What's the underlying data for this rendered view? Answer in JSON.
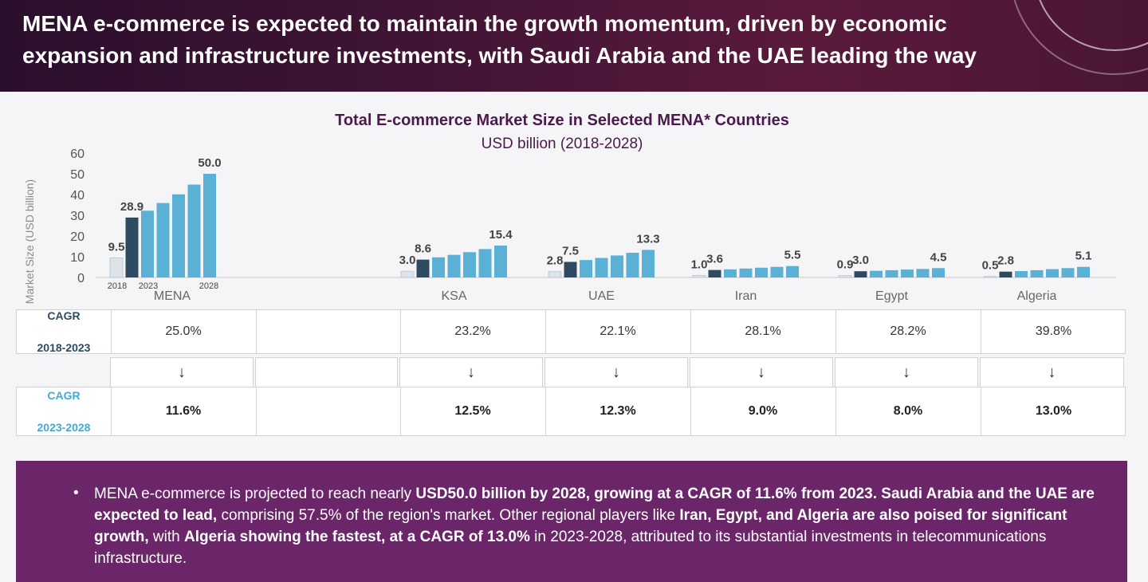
{
  "header": {
    "headline": "MENA e-commerce is expected to maintain the growth momentum, driven by economic expansion and infrastructure investments, with Saudi Arabia and the UAE leading the way"
  },
  "chart_data": {
    "type": "bar",
    "title": "Total E-commerce Market Size in Selected MENA* Countries",
    "subtitle": "USD billion (2018-2028)",
    "ylabel": "Market Size (USD billion)",
    "ylim": [
      0,
      60
    ],
    "yticks": [
      "0",
      "10",
      "20",
      "30",
      "40",
      "50",
      "60"
    ],
    "year_labels": [
      "2018",
      "2023",
      "2028"
    ],
    "colors": {
      "historic": "#dde3e9",
      "current": "#2e4a60",
      "forecast": "#5bb0d6"
    },
    "groups": [
      {
        "name": "MENA",
        "values": [
          9.5,
          28.9,
          32.2,
          35.9,
          40.1,
          44.8,
          50.0
        ],
        "labels": [
          "9.5",
          "28.9",
          "50.0"
        ]
      },
      {
        "name": "KSA",
        "values": [
          3.0,
          8.6,
          9.7,
          10.9,
          12.2,
          13.7,
          15.4
        ],
        "labels": [
          "3.0",
          "8.6",
          "15.4"
        ]
      },
      {
        "name": "UAE",
        "values": [
          2.8,
          7.5,
          8.4,
          9.4,
          10.6,
          11.9,
          13.3
        ],
        "labels": [
          "2.8",
          "7.5",
          "13.3"
        ]
      },
      {
        "name": "Iran",
        "values": [
          1.0,
          3.6,
          3.9,
          4.3,
          4.7,
          5.1,
          5.5
        ],
        "labels": [
          "1.0",
          "3.6",
          "5.5"
        ]
      },
      {
        "name": "Egypt",
        "values": [
          0.9,
          3.0,
          3.2,
          3.5,
          3.8,
          4.1,
          4.5
        ],
        "labels": [
          "0.9",
          "3.0",
          "4.5"
        ]
      },
      {
        "name": "Algeria",
        "values": [
          0.5,
          2.8,
          3.1,
          3.5,
          4.0,
          4.5,
          5.1
        ],
        "labels": [
          "0.5",
          "2.8",
          "5.1"
        ]
      }
    ]
  },
  "table": {
    "row1_label": [
      "CAGR",
      "2018-2023"
    ],
    "row2_label": [
      "CAGR",
      "2023-2028"
    ],
    "arrow": "↓",
    "row1": [
      "25.0%",
      "",
      "23.2%",
      "22.1%",
      "28.1%",
      "28.2%",
      "39.8%"
    ],
    "row3": [
      "11.6%",
      "",
      "12.5%",
      "12.3%",
      "9.0%",
      "8.0%",
      "13.0%"
    ]
  },
  "summary": {
    "bullet": "•",
    "parts": [
      {
        "t": "MENA e-commerce is projected to reach nearly ",
        "b": false
      },
      {
        "t": "USD50.0 billion by 2028, growing at a CAGR of 11.6% from 2023.",
        "b": true
      },
      {
        "t": " ",
        "b": false
      },
      {
        "t": "Saudi Arabia and the UAE are expected to lead,",
        "b": true
      },
      {
        "t": " comprising 57.5% of the region's market. Other regional players like ",
        "b": false
      },
      {
        "t": "Iran, Egypt, and Algeria are also poised for significant growth,",
        "b": true
      },
      {
        "t": " with ",
        "b": false
      },
      {
        "t": "Algeria showing the fastest, at a CAGR of 13.0%",
        "b": true
      },
      {
        "t": " in 2023-2028, attributed to its substantial investments in telecommunications infrastructure.",
        "b": false
      }
    ]
  }
}
